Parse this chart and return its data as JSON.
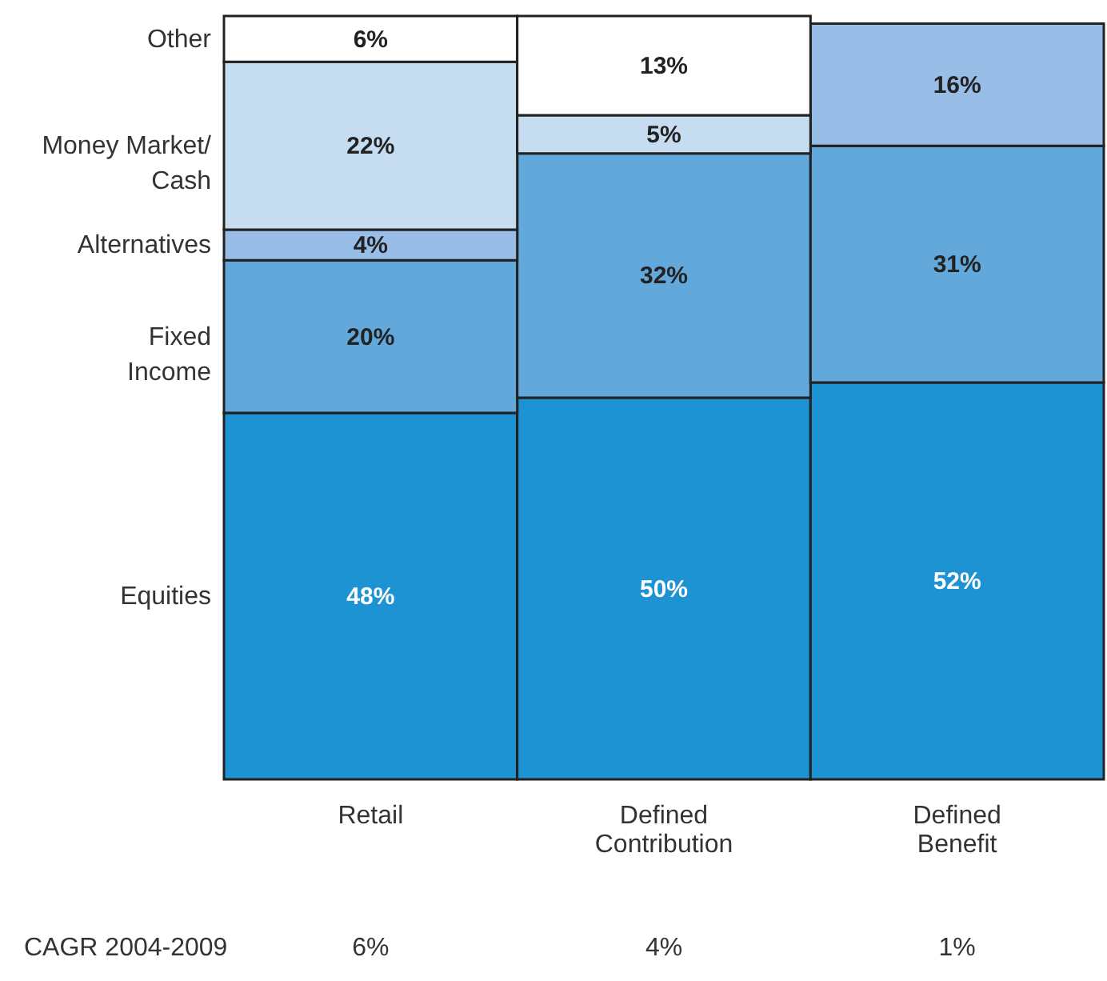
{
  "chart_data": {
    "type": "bar",
    "stacked": true,
    "legend": false,
    "categories": [
      "Retail",
      "Defined Contribution",
      "Defined Benefit"
    ],
    "series": [
      {
        "name": "Equities",
        "color": "#1e93d3",
        "values": [
          48,
          50,
          52
        ],
        "value_labels": [
          "48%",
          "50%",
          "52%"
        ]
      },
      {
        "name": "Fixed Income",
        "color": "#62a8db",
        "values": [
          20,
          32,
          31
        ],
        "value_labels": [
          "20%",
          "32%",
          "31%"
        ]
      },
      {
        "name": "Alternatives",
        "color": "#98bde6",
        "values": [
          4,
          null,
          16
        ],
        "value_labels": [
          "4%",
          null,
          "16%"
        ]
      },
      {
        "name": "Money Market/Cash",
        "color": "#c6dcf1",
        "values": [
          22,
          5,
          null
        ],
        "value_labels": [
          "22%",
          "5%",
          null
        ]
      },
      {
        "name": "Other",
        "color": "#ffffff",
        "values": [
          6,
          13,
          null
        ],
        "value_labels": [
          "6%",
          "13%",
          null
        ]
      }
    ],
    "annotations": [
      "CAGR 2004-2009",
      "6%",
      "4%",
      "1%"
    ]
  }
}
